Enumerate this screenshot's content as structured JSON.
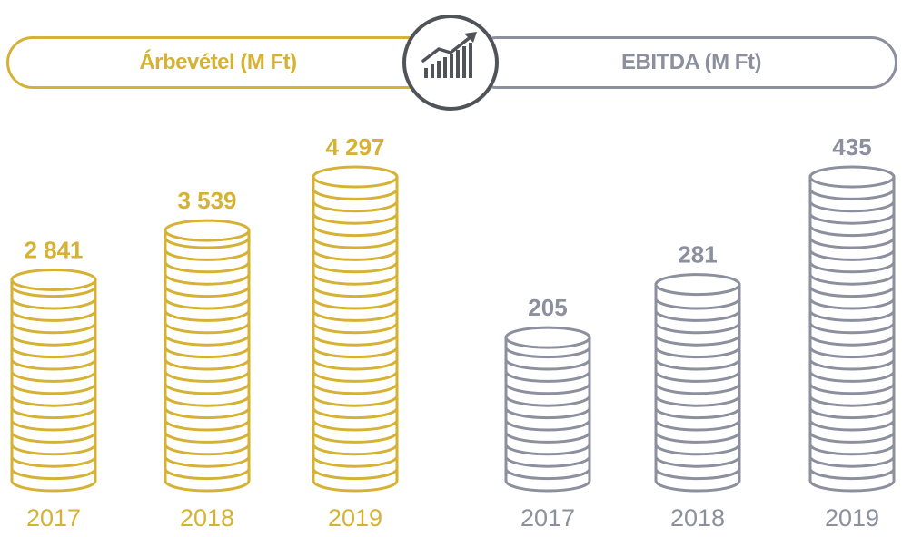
{
  "left_panel": {
    "title": "Árbevétel (M Ft)"
  },
  "right_panel": {
    "title": "EBITDA (M Ft)"
  },
  "icon": "growth-chart-icon",
  "colors": {
    "revenue": "#d6b234",
    "ebitda": "#8c8f9d",
    "badge": "#505357"
  },
  "chart_data": [
    {
      "type": "bar",
      "title": "Árbevétel (M Ft)",
      "categories": [
        "2017",
        "2018",
        "2019"
      ],
      "values": [
        2841,
        3539,
        4297
      ],
      "value_labels": [
        "2 841",
        "3 539",
        "4 297"
      ]
    },
    {
      "type": "bar",
      "title": "EBITDA (M Ft)",
      "categories": [
        "2017",
        "2018",
        "2019"
      ],
      "values": [
        205,
        281,
        435
      ],
      "value_labels": [
        "205",
        "281",
        "435"
      ]
    }
  ]
}
